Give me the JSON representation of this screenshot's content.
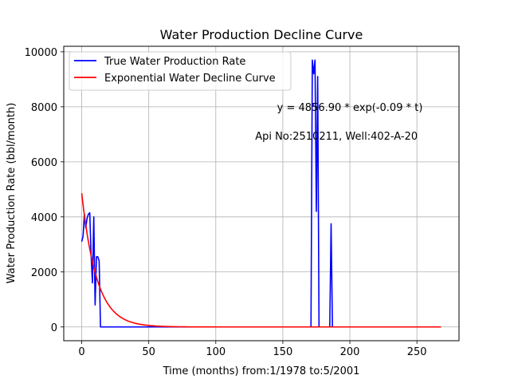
{
  "chart_data": {
    "type": "line",
    "title": "Water Production Decline Curve",
    "xlabel": "Time (months) from:1/1978 to:5/2001",
    "ylabel": "Water Production Rate (bbl/month)",
    "xlim": [
      -13.4,
      281.4
    ],
    "ylim": [
      -500,
      10200
    ],
    "xticks": [
      0,
      50,
      100,
      150,
      200,
      250
    ],
    "yticks": [
      0,
      2000,
      4000,
      6000,
      8000,
      10000
    ],
    "grid": true,
    "legend": "top-left",
    "annotations": [
      {
        "text": "y = 4856.90 * exp(-0.09 * t)",
        "x": 200,
        "y": 8000
      },
      {
        "text": "Api No:2510211, Well:402-A-20",
        "x": 190,
        "y": 6950
      }
    ],
    "series": [
      {
        "name": "True Water Production Rate",
        "color": "#0000ff",
        "x": [
          0,
          1,
          2,
          3,
          4,
          5,
          6,
          7,
          8,
          9,
          10,
          11,
          12,
          13,
          14,
          15,
          171,
          172,
          173,
          174,
          175,
          176,
          177,
          185,
          186,
          187,
          268
        ],
        "y": [
          3100,
          3300,
          4100,
          3600,
          3950,
          4100,
          4150,
          2600,
          1600,
          4000,
          800,
          2550,
          2550,
          2400,
          0,
          0,
          0,
          9700,
          9200,
          9700,
          4200,
          9100,
          0,
          0,
          3750,
          0,
          0
        ]
      },
      {
        "name": "Exponential Water Decline Curve",
        "color": "#ff0000",
        "a": 4856.9,
        "b": -0.09,
        "x_range": [
          0,
          268
        ]
      }
    ]
  }
}
